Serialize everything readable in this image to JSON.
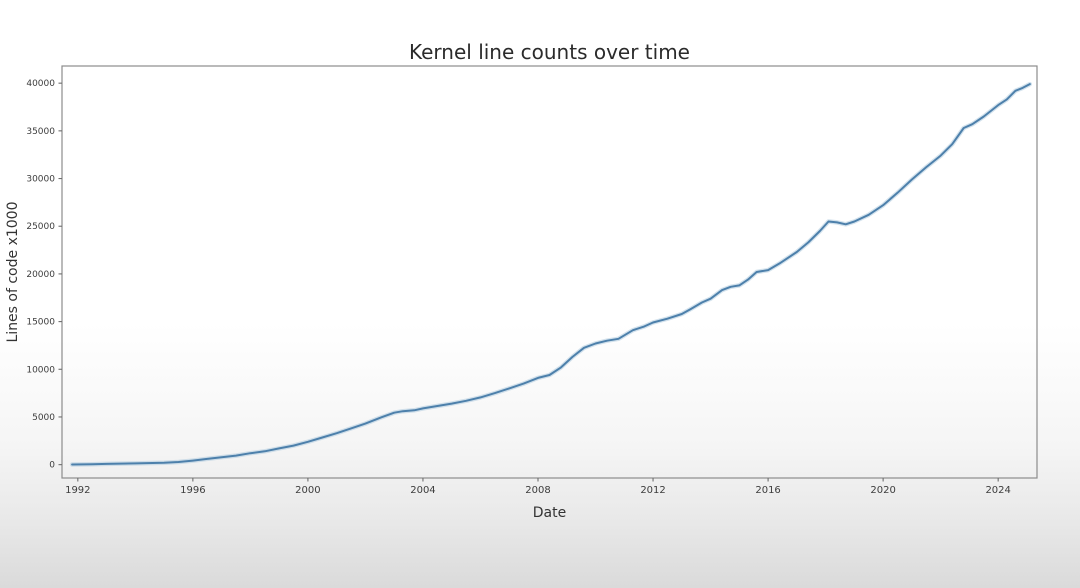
{
  "figure": {
    "kind": "matplotlib line chart video frame",
    "title": "Kernel line counts over time",
    "xlabel": "Date",
    "ylabel": "Lines of code x1000"
  },
  "colors": {
    "line": "#4d80ab",
    "line_halo": "#aecbde",
    "frame": "#8c8c8c",
    "tick": "#6e6e6e",
    "title_text": "#2b2b2b",
    "label_text": "#333333",
    "tick_text": "#3d3d3d",
    "bg_top": "#ffffff",
    "bg_bottom": "#dadada"
  },
  "chart_data": {
    "type": "line",
    "title": "Kernel line counts over time",
    "xlabel": "Date",
    "ylabel": "Lines of code x1000",
    "grid": false,
    "legend": null,
    "x_ticks": [
      1992,
      1996,
      2000,
      2004,
      2008,
      2012,
      2016,
      2020,
      2024
    ],
    "y_ticks": [
      0,
      5000,
      10000,
      15000,
      20000,
      25000,
      30000,
      35000,
      40000
    ],
    "xlim": [
      1991.45,
      2025.35
    ],
    "ylim": [
      -1400,
      41800
    ],
    "series": [
      {
        "name": "kernel-lines-of-code-x1000",
        "x": [
          1991.8,
          1992.5,
          1993,
          1994,
          1995,
          1995.5,
          1996,
          1996.5,
          1997,
          1997.5,
          1998,
          1998.5,
          1999,
          1999.5,
          2000,
          2000.5,
          2001,
          2001.5,
          2002,
          2002.5,
          2003,
          2003.3,
          2003.7,
          2004,
          2004.5,
          2005,
          2005.5,
          2006,
          2006.5,
          2007,
          2007.5,
          2008,
          2008.4,
          2008.8,
          2009.2,
          2009.6,
          2010,
          2010.4,
          2010.8,
          2011.3,
          2011.7,
          2012,
          2012.5,
          2013,
          2013.3,
          2013.7,
          2014,
          2014.4,
          2014.7,
          2015,
          2015.3,
          2015.6,
          2016,
          2016.4,
          2017,
          2017.4,
          2017.8,
          2018.1,
          2018.4,
          2018.7,
          2019,
          2019.5,
          2020,
          2020.5,
          2021,
          2021.5,
          2022,
          2022.4,
          2022.8,
          2023.1,
          2023.5,
          2024,
          2024.3,
          2024.6,
          2024.85,
          2025.1
        ],
        "y": [
          20,
          50,
          80,
          130,
          200,
          280,
          420,
          600,
          780,
          950,
          1200,
          1400,
          1700,
          2000,
          2400,
          2850,
          3300,
          3800,
          4300,
          4900,
          5450,
          5600,
          5700,
          5900,
          6150,
          6400,
          6700,
          7050,
          7500,
          8000,
          8500,
          9100,
          9400,
          10200,
          11300,
          12250,
          12700,
          13000,
          13200,
          14100,
          14500,
          14900,
          15300,
          15800,
          16300,
          17000,
          17400,
          18300,
          18650,
          18800,
          19400,
          20200,
          20400,
          21100,
          22300,
          23300,
          24500,
          25500,
          25400,
          25200,
          25500,
          26200,
          27200,
          28500,
          29900,
          31200,
          32400,
          33600,
          35300,
          35700,
          36500,
          37700,
          38300,
          39200,
          39500,
          39900
        ]
      }
    ]
  }
}
